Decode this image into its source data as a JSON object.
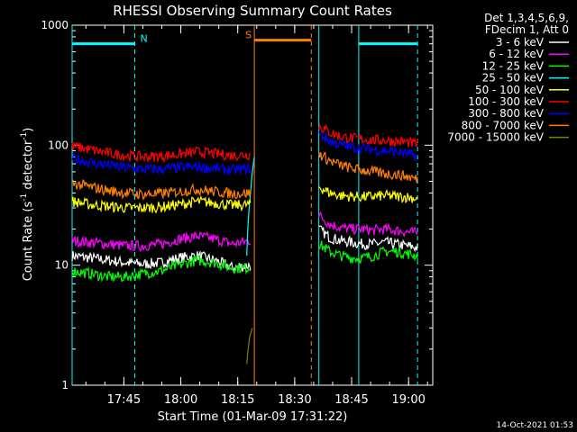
{
  "chart_data": {
    "type": "line",
    "title": "RHESSI Observing Summary Count Rates",
    "xlabel": "Start Time (01-Mar-09 17:31:22)",
    "ylabel_main": "Count Rate (s",
    "ylabel_sup1": "-1",
    "ylabel_mid": " detector",
    "ylabel_sup2": "-1",
    "ylabel_end": ")",
    "yscale": "log",
    "ylim": [
      1,
      1000
    ],
    "xlim_minutes": [
      0,
      95
    ],
    "yticks": [
      {
        "value": 1,
        "label": "1"
      },
      {
        "value": 10,
        "label": "10"
      },
      {
        "value": 100,
        "label": "100"
      },
      {
        "value": 1000,
        "label": "1000"
      }
    ],
    "xticks": [
      {
        "minutes": 13.63,
        "label": "17:45"
      },
      {
        "minutes": 28.63,
        "label": "18:00"
      },
      {
        "minutes": 43.63,
        "label": "18:15"
      },
      {
        "minutes": 58.63,
        "label": "18:30"
      },
      {
        "minutes": 73.63,
        "label": "18:45"
      },
      {
        "minutes": 88.63,
        "label": "19:00"
      }
    ],
    "legend_header": [
      "Det 1,3,4,5,6,9,",
      "FDecim 1, Att 0"
    ],
    "series": [
      {
        "name": "3 - 6 keV",
        "color": "#ffffff",
        "segments": [
          {
            "start": 0,
            "end": 47,
            "values": [
              12,
              11.5,
              11,
              10.5,
              10.2,
              10.5,
              11.5,
              12,
              11,
              9.5,
              10
            ]
          },
          {
            "start": 65,
            "end": 91,
            "values": [
              20,
              17,
              16,
              15.5,
              15,
              15,
              15.5,
              15,
              14.5,
              14
            ]
          }
        ]
      },
      {
        "name": "6 - 12 keV",
        "color": "#ff00ff",
        "segments": [
          {
            "start": 0,
            "end": 47,
            "values": [
              16,
              15.5,
              15,
              14.5,
              14.5,
              15,
              16.5,
              17.5,
              16.5,
              15,
              16
            ]
          },
          {
            "start": 65,
            "end": 91,
            "values": [
              26,
              22,
              20.5,
              20,
              20,
              19.5,
              20,
              19.5,
              19,
              18.5
            ]
          }
        ]
      },
      {
        "name": "12 - 25 keV",
        "color": "#00ff00",
        "segments": [
          {
            "start": 0,
            "end": 47,
            "values": [
              9,
              8.5,
              8,
              8,
              8.5,
              9,
              10,
              11,
              10.5,
              9.5,
              9.5
            ]
          },
          {
            "start": 65,
            "end": 91,
            "values": [
              15,
              13,
              12,
              11.5,
              11.5,
              12,
              13,
              13,
              12.5,
              12
            ]
          }
        ]
      },
      {
        "name": "25 - 50 keV",
        "color": "#00ffff",
        "segments": [
          {
            "start": 46,
            "end": 48,
            "values": [
              12,
              40,
              80
            ]
          }
        ]
      },
      {
        "name": "50 - 100 keV",
        "color": "#ffff00",
        "segments": [
          {
            "start": 0,
            "end": 47,
            "values": [
              34,
              32,
              31,
              30,
              30,
              30.5,
              32,
              34,
              33,
              31.5,
              32
            ]
          },
          {
            "start": 65,
            "end": 91,
            "values": [
              45,
              40,
              38,
              37.5,
              37,
              37.5,
              38,
              37.5,
              37,
              36
            ]
          }
        ]
      },
      {
        "name": "100 - 300 keV",
        "color": "#ff0000",
        "segments": [
          {
            "start": 0,
            "end": 47,
            "values": [
              98,
              92,
              86,
              82,
              80,
              81,
              84,
              88,
              85,
              82,
              84
            ]
          },
          {
            "start": 65,
            "end": 91,
            "values": [
              145,
              128,
              118,
              114,
              112,
              110,
              110,
              108,
              106,
              102
            ]
          }
        ]
      },
      {
        "name": "300 - 800 keV",
        "color": "#0000ff",
        "segments": [
          {
            "start": 0,
            "end": 47,
            "values": [
              78,
              72,
              68,
              65,
              63,
              63,
              65,
              66,
              64,
              62,
              64
            ]
          },
          {
            "start": 65,
            "end": 91,
            "values": [
              125,
              108,
              100,
              96,
              94,
              92,
              90,
              88,
              85,
              80
            ]
          }
        ]
      },
      {
        "name": "800 - 7000 keV",
        "color": "#ff8000",
        "segments": [
          {
            "start": 0,
            "end": 47,
            "values": [
              48,
              45,
              42,
              40,
              39,
              39.5,
              41,
              43,
              41,
              39.5,
              40
            ]
          },
          {
            "start": 65,
            "end": 91,
            "values": [
              85,
              74,
              68,
              64,
              62,
              60,
              58,
              57,
              55,
              52
            ]
          }
        ]
      },
      {
        "name": "7000 - 15000 keV",
        "color": "#808000",
        "segments": [
          {
            "start": 46,
            "end": 47.5,
            "values": [
              1.5,
              2.5,
              3
            ]
          }
        ]
      }
    ],
    "shaded_bars": [
      {
        "label": "N",
        "color": "#00ffff",
        "start": 0,
        "end": 16.5,
        "level": 700
      },
      {
        "label": "S",
        "color": "#ff8000",
        "start": 48,
        "end": 63,
        "level": 750
      },
      {
        "label": "",
        "color": "#00ffff",
        "start": 75.5,
        "end": 91,
        "level": 700
      }
    ],
    "vlines": [
      {
        "minutes": 0,
        "color": "#00ffff",
        "dash": false
      },
      {
        "minutes": 16.5,
        "color": "#00ffff",
        "dash": true
      },
      {
        "minutes": 48,
        "color": "#ff8000",
        "dash": false
      },
      {
        "minutes": 63,
        "color": "#ff8000",
        "dash": true
      },
      {
        "minutes": 65,
        "color": "#00ffff",
        "dash": false
      },
      {
        "minutes": 75.5,
        "color": "#00ffff",
        "dash": false
      },
      {
        "minutes": 91,
        "color": "#00ffff",
        "dash": true
      }
    ],
    "timestamp": "14-Oct-2021 01:53"
  }
}
